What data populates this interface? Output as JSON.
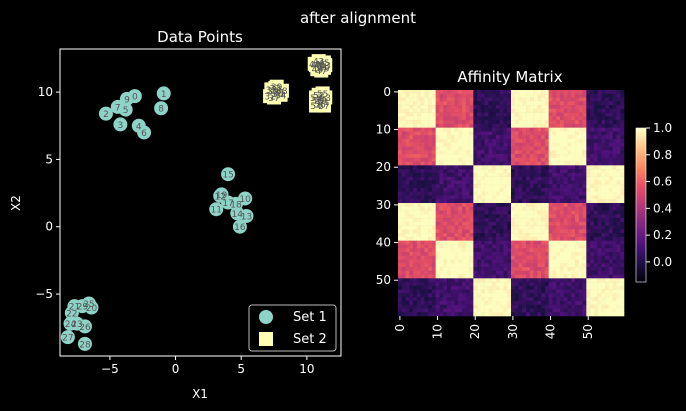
{
  "figure": {
    "suptitle": "after alignment"
  },
  "chart_data": [
    {
      "type": "scatter",
      "title": "Data Points",
      "xlabel": "X1",
      "ylabel": "X2",
      "xlim": [
        -8.8,
        12.6
      ],
      "ylim": [
        -9.6,
        13.2
      ],
      "xticks": [
        -5,
        0,
        5,
        10
      ],
      "yticks": [
        -5,
        0,
        5,
        10
      ],
      "legend": {
        "placement": "lower-right",
        "entries": [
          "Set 1",
          "Set 2"
        ]
      },
      "series": [
        {
          "name": "Set 1",
          "color": "#8dd3c7",
          "marker": "circle",
          "points": [
            {
              "label": "0",
              "x": -3.1,
              "y": 9.7
            },
            {
              "label": "1",
              "x": -0.9,
              "y": 9.9
            },
            {
              "label": "2",
              "x": -5.3,
              "y": 8.4
            },
            {
              "label": "3",
              "x": -4.2,
              "y": 7.6
            },
            {
              "label": "4",
              "x": -2.8,
              "y": 7.5
            },
            {
              "label": "5",
              "x": -3.8,
              "y": 8.7
            },
            {
              "label": "6",
              "x": -2.4,
              "y": 7.0
            },
            {
              "label": "7",
              "x": -4.4,
              "y": 8.9
            },
            {
              "label": "8",
              "x": -1.1,
              "y": 8.8
            },
            {
              "label": "9",
              "x": -3.7,
              "y": 9.5
            },
            {
              "label": "10",
              "x": 5.3,
              "y": 2.1
            },
            {
              "label": "11",
              "x": 3.1,
              "y": 1.3
            },
            {
              "label": "12",
              "x": 3.4,
              "y": 2.3
            },
            {
              "label": "13",
              "x": 5.4,
              "y": 0.8
            },
            {
              "label": "14",
              "x": 4.7,
              "y": 1.0
            },
            {
              "label": "15",
              "x": 4.0,
              "y": 3.9
            },
            {
              "label": "16",
              "x": 4.9,
              "y": 0.0
            },
            {
              "label": "17",
              "x": 4.0,
              "y": 1.8
            },
            {
              "label": "18",
              "x": 4.6,
              "y": 1.7
            },
            {
              "label": "19",
              "x": 3.5,
              "y": 2.4
            },
            {
              "label": "20",
              "x": -6.4,
              "y": -6.0
            },
            {
              "label": "21",
              "x": -7.7,
              "y": -5.9
            },
            {
              "label": "22",
              "x": -7.9,
              "y": -6.4
            },
            {
              "label": "23",
              "x": -7.5,
              "y": -7.2
            },
            {
              "label": "24",
              "x": -8.0,
              "y": -7.2
            },
            {
              "label": "25",
              "x": -6.6,
              "y": -5.7
            },
            {
              "label": "26",
              "x": -6.9,
              "y": -7.4
            },
            {
              "label": "27",
              "x": -8.2,
              "y": -8.2
            },
            {
              "label": "28",
              "x": -6.9,
              "y": -8.7
            },
            {
              "label": "29",
              "x": -7.1,
              "y": -5.9
            }
          ]
        },
        {
          "name": "Set 2",
          "color": "#ffffb3",
          "marker": "square",
          "points": [
            {
              "label": "30",
              "x": 7.4,
              "y": 10.1
            },
            {
              "label": "31",
              "x": 7.9,
              "y": 10.0
            },
            {
              "label": "32",
              "x": 7.2,
              "y": 9.7
            },
            {
              "label": "33",
              "x": 7.6,
              "y": 10.3
            },
            {
              "label": "34",
              "x": 8.0,
              "y": 9.8
            },
            {
              "label": "35",
              "x": 7.3,
              "y": 10.2
            },
            {
              "label": "36",
              "x": 7.8,
              "y": 9.9
            },
            {
              "label": "37",
              "x": 7.5,
              "y": 9.6
            },
            {
              "label": "38",
              "x": 8.1,
              "y": 10.1
            },
            {
              "label": "39",
              "x": 7.7,
              "y": 10.4
            },
            {
              "label": "40",
              "x": 10.7,
              "y": 12.0
            },
            {
              "label": "41",
              "x": 11.2,
              "y": 11.9
            },
            {
              "label": "42",
              "x": 10.9,
              "y": 12.3
            },
            {
              "label": "43",
              "x": 11.4,
              "y": 12.0
            },
            {
              "label": "44",
              "x": 10.8,
              "y": 11.7
            },
            {
              "label": "45",
              "x": 11.3,
              "y": 12.2
            },
            {
              "label": "46",
              "x": 11.0,
              "y": 12.1
            },
            {
              "label": "47",
              "x": 11.1,
              "y": 11.6
            },
            {
              "label": "48",
              "x": 10.6,
              "y": 12.1
            },
            {
              "label": "49",
              "x": 11.3,
              "y": 11.8
            },
            {
              "label": "50",
              "x": 10.8,
              "y": 9.4
            },
            {
              "label": "51",
              "x": 11.3,
              "y": 9.3
            },
            {
              "label": "52",
              "x": 10.9,
              "y": 9.8
            },
            {
              "label": "53",
              "x": 11.4,
              "y": 9.6
            },
            {
              "label": "54",
              "x": 10.7,
              "y": 9.0
            },
            {
              "label": "55",
              "x": 11.2,
              "y": 9.9
            },
            {
              "label": "56",
              "x": 11.0,
              "y": 9.1
            },
            {
              "label": "57",
              "x": 11.3,
              "y": 9.0
            },
            {
              "label": "58",
              "x": 10.7,
              "y": 9.6
            },
            {
              "label": "59",
              "x": 11.1,
              "y": 9.4
            }
          ]
        }
      ]
    },
    {
      "type": "heatmap",
      "title": "Affinity Matrix",
      "n": 60,
      "xticks": [
        "0",
        "10",
        "20",
        "30",
        "40",
        "50"
      ],
      "yticks": [
        "0",
        "10",
        "20",
        "30",
        "40",
        "50"
      ],
      "tick_values": [
        0,
        10,
        20,
        30,
        40,
        50
      ],
      "colormap": "magma",
      "colorbar": {
        "ticks": [
          "0.0",
          "0.2",
          "0.4",
          "0.6",
          "0.8",
          "1.0"
        ],
        "range": [
          -0.15,
          1.0
        ]
      },
      "block_size": 10,
      "block_affinity": [
        [
          1.0,
          0.55,
          0.05,
          1.0,
          0.55,
          0.05
        ],
        [
          0.55,
          1.0,
          0.1,
          0.55,
          1.0,
          0.1
        ],
        [
          0.05,
          0.1,
          1.0,
          0.05,
          0.1,
          1.0
        ],
        [
          1.0,
          0.55,
          0.05,
          1.0,
          0.55,
          0.05
        ],
        [
          0.55,
          1.0,
          0.1,
          0.55,
          1.0,
          0.1
        ],
        [
          0.05,
          0.1,
          1.0,
          0.05,
          0.1,
          1.0
        ]
      ]
    }
  ]
}
